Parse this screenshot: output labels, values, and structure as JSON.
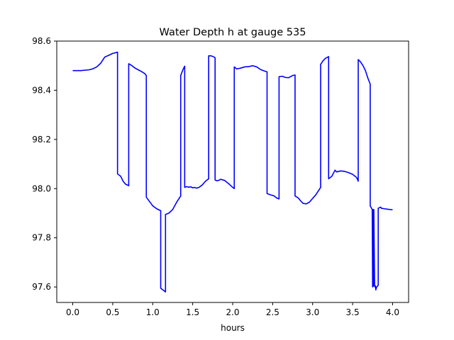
{
  "chart_data": {
    "type": "line",
    "title": "Water Depth h at gauge 535",
    "xlabel": "hours",
    "ylabel": "",
    "xlim": [
      -0.2,
      4.2
    ],
    "ylim": [
      97.537,
      98.6
    ],
    "xticks": [
      0.0,
      0.5,
      1.0,
      1.5,
      2.0,
      2.5,
      3.0,
      3.5,
      4.0
    ],
    "xtick_labels": [
      "0.0",
      "0.5",
      "1.0",
      "1.5",
      "2.0",
      "2.5",
      "3.0",
      "3.5",
      "4.0"
    ],
    "yticks": [
      97.6,
      97.8,
      98.0,
      98.2,
      98.4,
      98.6
    ],
    "ytick_labels": [
      "97.6",
      "97.8",
      "98.0",
      "98.2",
      "98.4",
      "98.6"
    ],
    "grid": false,
    "legend": "none",
    "series": [
      {
        "color": "#0000ff",
        "x": [
          0.0,
          0.1,
          0.2,
          0.25,
          0.3,
          0.35,
          0.4,
          0.45,
          0.5,
          0.54,
          0.56,
          0.56,
          0.6,
          0.63,
          0.66,
          0.7,
          0.7,
          0.74,
          0.78,
          0.82,
          0.86,
          0.9,
          0.92,
          0.92,
          0.95,
          1.0,
          1.05,
          1.1,
          1.1,
          1.14,
          1.16,
          1.16,
          1.2,
          1.25,
          1.3,
          1.35,
          1.35,
          1.38,
          1.4,
          1.4,
          1.42,
          1.45,
          1.48,
          1.5,
          1.52,
          1.55,
          1.58,
          1.62,
          1.66,
          1.7,
          1.7,
          1.73,
          1.77,
          1.78,
          1.78,
          1.8,
          1.83,
          1.85,
          1.9,
          1.95,
          2.0,
          2.02,
          2.02,
          2.05,
          2.1,
          2.15,
          2.2,
          2.25,
          2.3,
          2.35,
          2.4,
          2.43,
          2.43,
          2.47,
          2.52,
          2.55,
          2.58,
          2.58,
          2.62,
          2.66,
          2.7,
          2.75,
          2.78,
          2.78,
          2.82,
          2.85,
          2.88,
          2.92,
          2.96,
          3.0,
          3.04,
          3.08,
          3.1,
          3.1,
          3.13,
          3.16,
          3.19,
          3.2,
          3.2,
          3.24,
          3.28,
          3.3,
          3.35,
          3.4,
          3.45,
          3.5,
          3.55,
          3.57,
          3.57,
          3.6,
          3.63,
          3.66,
          3.69,
          3.72,
          3.72,
          3.745,
          3.75,
          3.755,
          3.76,
          3.765,
          3.775,
          3.78,
          3.785,
          3.79,
          3.8,
          3.81,
          3.815,
          3.82,
          3.82,
          3.85,
          3.86,
          3.86,
          3.9,
          3.94,
          4.0
        ],
        "y": [
          98.48,
          98.48,
          98.483,
          98.487,
          98.495,
          98.51,
          98.535,
          98.542,
          98.55,
          98.553,
          98.555,
          98.06,
          98.05,
          98.03,
          98.018,
          98.012,
          98.508,
          98.5,
          98.49,
          98.483,
          98.476,
          98.468,
          98.46,
          97.965,
          97.952,
          97.93,
          97.918,
          97.91,
          97.595,
          97.585,
          97.58,
          97.895,
          97.9,
          97.915,
          97.945,
          97.97,
          98.46,
          98.485,
          98.498,
          98.005,
          98.008,
          98.006,
          98.007,
          98.003,
          98.005,
          98.002,
          98.005,
          98.015,
          98.03,
          98.04,
          98.54,
          98.54,
          98.535,
          98.532,
          98.035,
          98.032,
          98.034,
          98.038,
          98.033,
          98.02,
          98.005,
          98.0,
          98.495,
          98.487,
          98.49,
          98.495,
          98.496,
          98.5,
          98.495,
          98.484,
          98.478,
          98.475,
          97.98,
          97.975,
          97.97,
          97.962,
          97.958,
          98.455,
          98.457,
          98.452,
          98.451,
          98.46,
          98.462,
          97.97,
          97.962,
          97.95,
          97.94,
          97.938,
          97.945,
          97.96,
          97.975,
          97.995,
          98.005,
          98.505,
          98.52,
          98.53,
          98.535,
          98.537,
          98.04,
          98.05,
          98.075,
          98.068,
          98.072,
          98.07,
          98.065,
          98.058,
          98.045,
          98.03,
          98.525,
          98.515,
          98.5,
          98.48,
          98.45,
          98.425,
          97.93,
          97.915,
          97.6,
          97.915,
          97.603,
          97.915,
          97.605,
          97.6,
          97.605,
          97.588,
          97.6,
          97.603,
          97.605,
          97.607,
          97.92,
          97.925,
          97.92,
          97.92,
          97.918,
          97.916,
          97.914
        ]
      }
    ]
  }
}
